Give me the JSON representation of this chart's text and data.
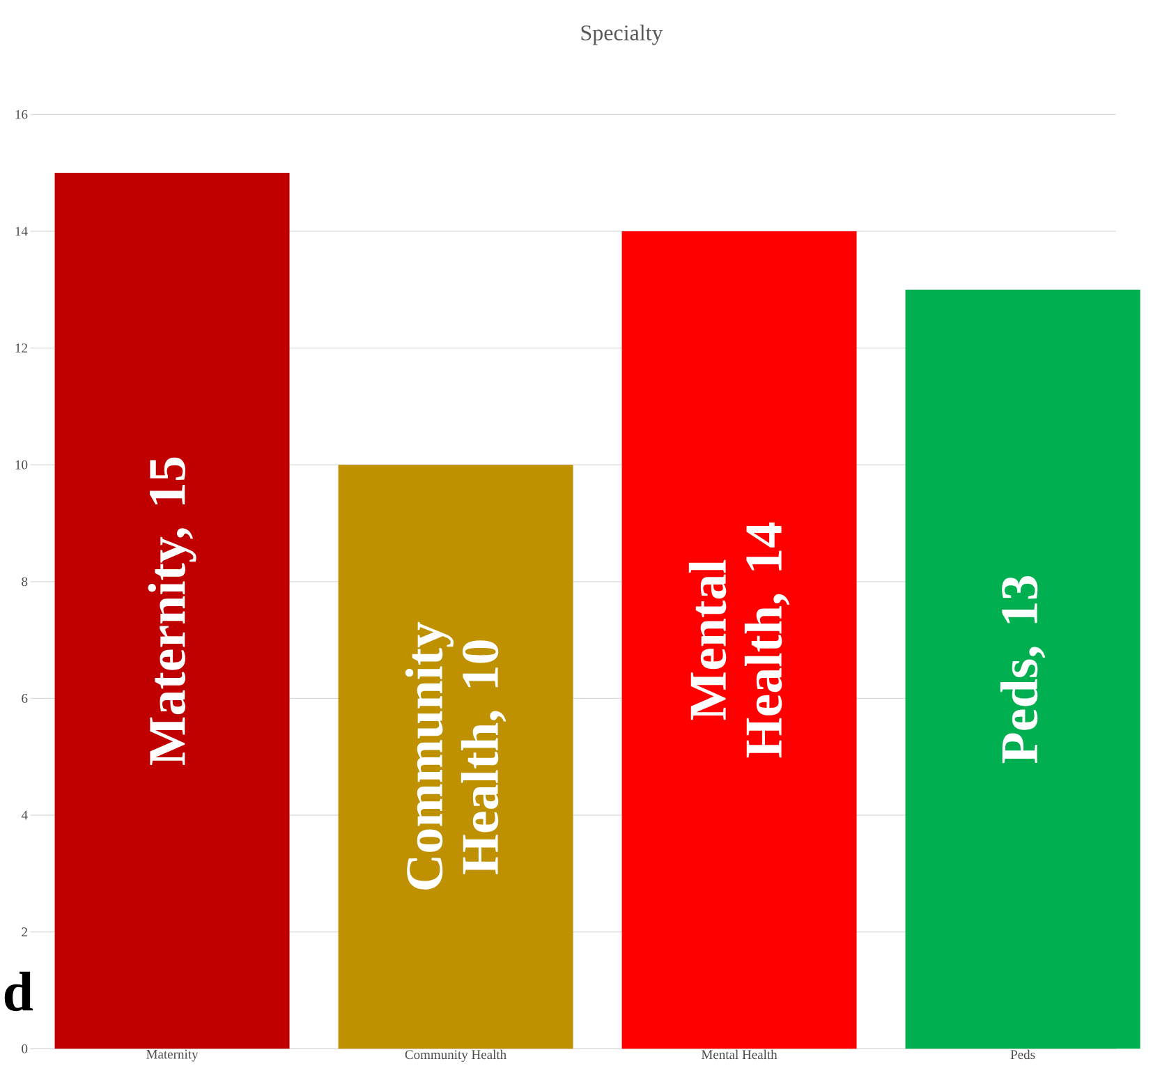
{
  "chart_data": {
    "type": "bar",
    "title": "Specialty",
    "categories": [
      "Maternity",
      "Community Health",
      "Mental Health",
      "Peds"
    ],
    "values": [
      15,
      10,
      14,
      13
    ],
    "colors": [
      "#c00000",
      "#bf9000",
      "#ff0000",
      "#00b050"
    ],
    "value_labels": [
      "Maternity, 15",
      "Community Health, 10",
      "Mental Health, 14",
      "Peds, 13"
    ],
    "ylim": [
      0,
      16
    ],
    "yticks": [
      0,
      2,
      4,
      6,
      8,
      10,
      12,
      14,
      16
    ],
    "grid": "y",
    "annotations": [
      "d"
    ]
  }
}
